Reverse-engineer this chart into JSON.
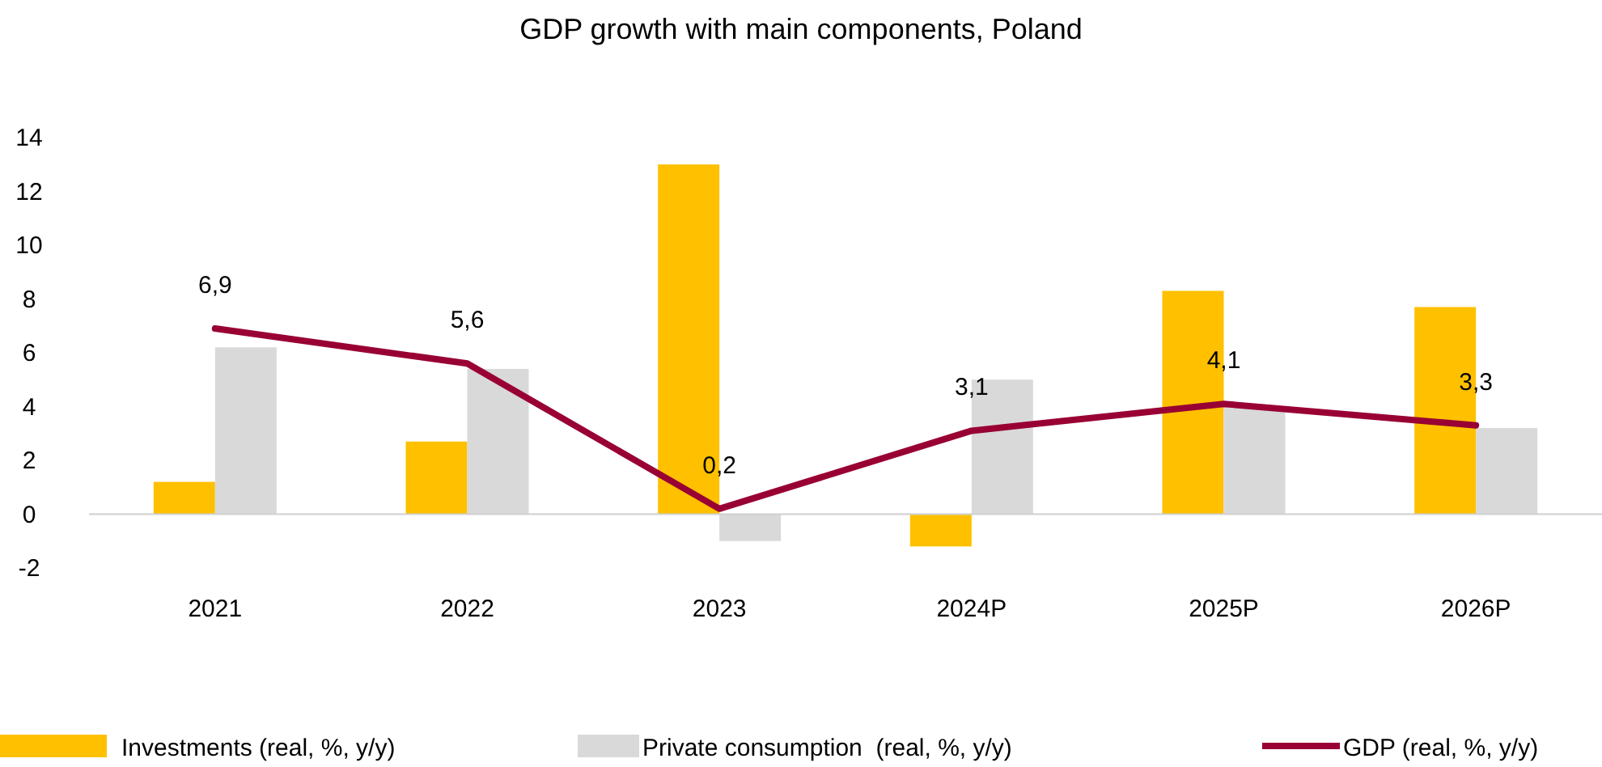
{
  "chart_data": {
    "type": "bar",
    "title": "GDP growth with main components, Poland",
    "categories": [
      "2021",
      "2022",
      "2023",
      "2024P",
      "2025P",
      "2026P"
    ],
    "series": [
      {
        "name": "Investments (real, %, y/y)",
        "color": "#ffc000",
        "values": [
          1.2,
          2.7,
          13.0,
          -1.2,
          8.3,
          7.7
        ]
      },
      {
        "name": "Private consumption  (real, %, y/y)",
        "color": "#d9d9d9",
        "values": [
          6.2,
          5.4,
          -1.0,
          5.0,
          4.0,
          3.2
        ]
      },
      {
        "name": "GDP (real, %, y/y)",
        "type": "line",
        "color": "#990033",
        "values": [
          6.9,
          5.6,
          0.2,
          3.1,
          4.1,
          3.3
        ],
        "value_labels": [
          "6,9",
          "5,6",
          "0,2",
          "3,1",
          "4,1",
          "3,3"
        ]
      }
    ],
    "ylim": [
      -2,
      14
    ],
    "yticks": [
      -2,
      0,
      2,
      4,
      6,
      8,
      10,
      12,
      14
    ],
    "grid": false,
    "ref_lines": [
      {
        "axis": "y",
        "value": 0,
        "color": "#d0d0d0"
      }
    ],
    "legend": "bottom",
    "marker": "none",
    "line_style": "solid"
  }
}
